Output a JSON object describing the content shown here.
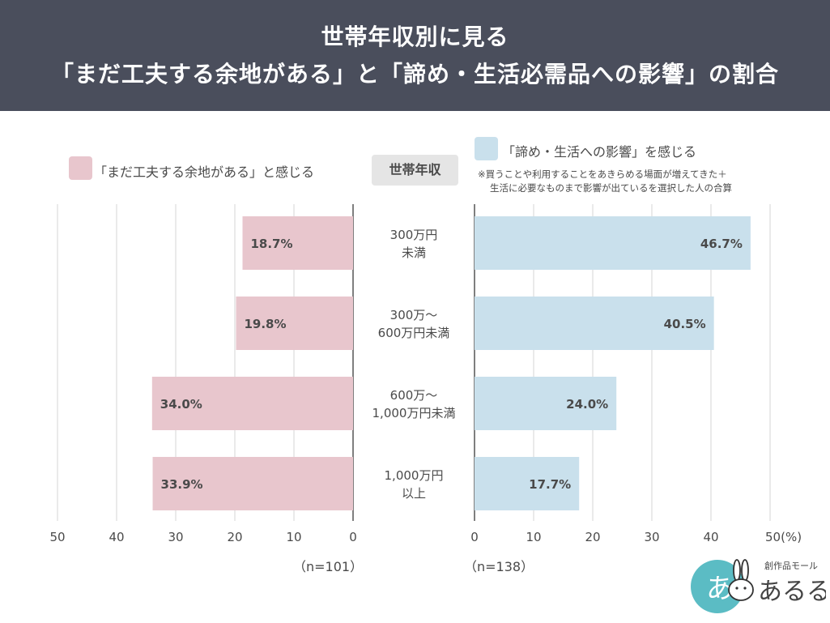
{
  "header": {
    "title_line1": "世帯年収別に見る",
    "title_line2": "「まだ工夫する余地がある」と「諦め・生活必需品への影響」の割合"
  },
  "legend": {
    "left_label": "「まだ工夫する余地がある」と感じる",
    "center_label": "世帯年収",
    "right_label": "「諦め・生活への影響」を感じる",
    "note_line1": "※買うことや利用することをあきらめる場面が増えてきた＋",
    "note_line2": "生活に必要なものまで影響が出ているを選択した人の合算",
    "colors": {
      "left": "#e8c6cd",
      "right": "#c9e0ec"
    }
  },
  "n": {
    "left": "（n=101）",
    "right": "（n=138）"
  },
  "chart_data": {
    "type": "bar",
    "categories": [
      [
        "300万円",
        "未満"
      ],
      [
        "300万〜",
        "600万円未満"
      ],
      [
        "600万〜",
        "1,000万円未満"
      ],
      [
        "1,000万円",
        "以上"
      ]
    ],
    "series": [
      {
        "name": "「まだ工夫する余地がある」と感じる",
        "values": [
          18.7,
          19.8,
          34.0,
          33.9
        ],
        "labels": [
          "18.7%",
          "19.8%",
          "34.0%",
          "33.9%"
        ],
        "color": "#e8c6cd"
      },
      {
        "name": "「諦め・生活への影響」を感じる",
        "values": [
          46.7,
          40.5,
          24.0,
          17.7
        ],
        "labels": [
          "46.7%",
          "40.5%",
          "24.0%",
          "17.7%"
        ],
        "color": "#c9e0ec"
      }
    ],
    "left_ticks": [
      "50",
      "40",
      "30",
      "20",
      "10",
      "0"
    ],
    "right_ticks": [
      "0",
      "10",
      "20",
      "30",
      "40",
      "50(%)"
    ],
    "xlim": [
      0,
      50
    ],
    "grid": true
  },
  "logo": {
    "text": "あるる",
    "subtext": "創作品モール",
    "badge": "あ"
  }
}
